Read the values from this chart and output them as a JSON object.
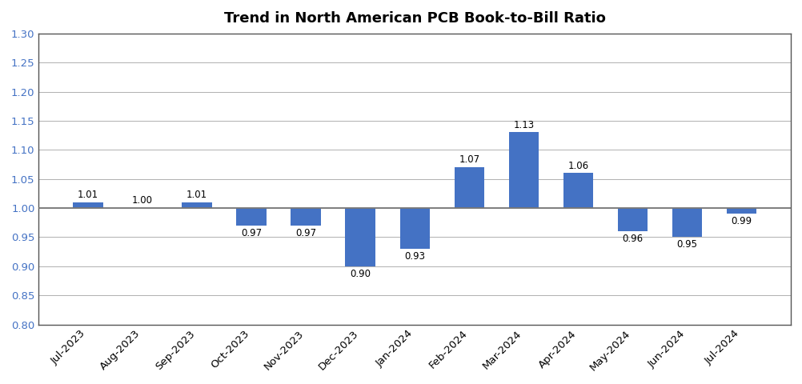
{
  "title": "Trend in North American PCB Book-to-Bill Ratio",
  "categories": [
    "Jul-2023",
    "Aug-2023",
    "Sep-2023",
    "Oct-2023",
    "Nov-2023",
    "Dec-2023",
    "Jan-2024",
    "Feb-2024",
    "Mar-2024",
    "Apr-2024",
    "May-2024",
    "Jun-2024",
    "Jul-2024"
  ],
  "values": [
    1.01,
    1.0,
    1.01,
    0.97,
    0.97,
    0.9,
    0.93,
    1.07,
    1.13,
    1.06,
    0.96,
    0.95,
    0.99
  ],
  "bar_color": "#4472C4",
  "label_color": "#000000",
  "ytick_color": "#4472C4",
  "background_color": "#ffffff",
  "ylim": [
    0.8,
    1.3
  ],
  "yticks": [
    0.8,
    0.85,
    0.9,
    0.95,
    1.0,
    1.05,
    1.1,
    1.15,
    1.2,
    1.25,
    1.3
  ],
  "title_fontsize": 13,
  "tick_fontsize": 9.5,
  "bar_label_fontsize": 8.5,
  "grid_color": "#b0b0b0",
  "spine_color": "#555555",
  "baseline": 1.0
}
